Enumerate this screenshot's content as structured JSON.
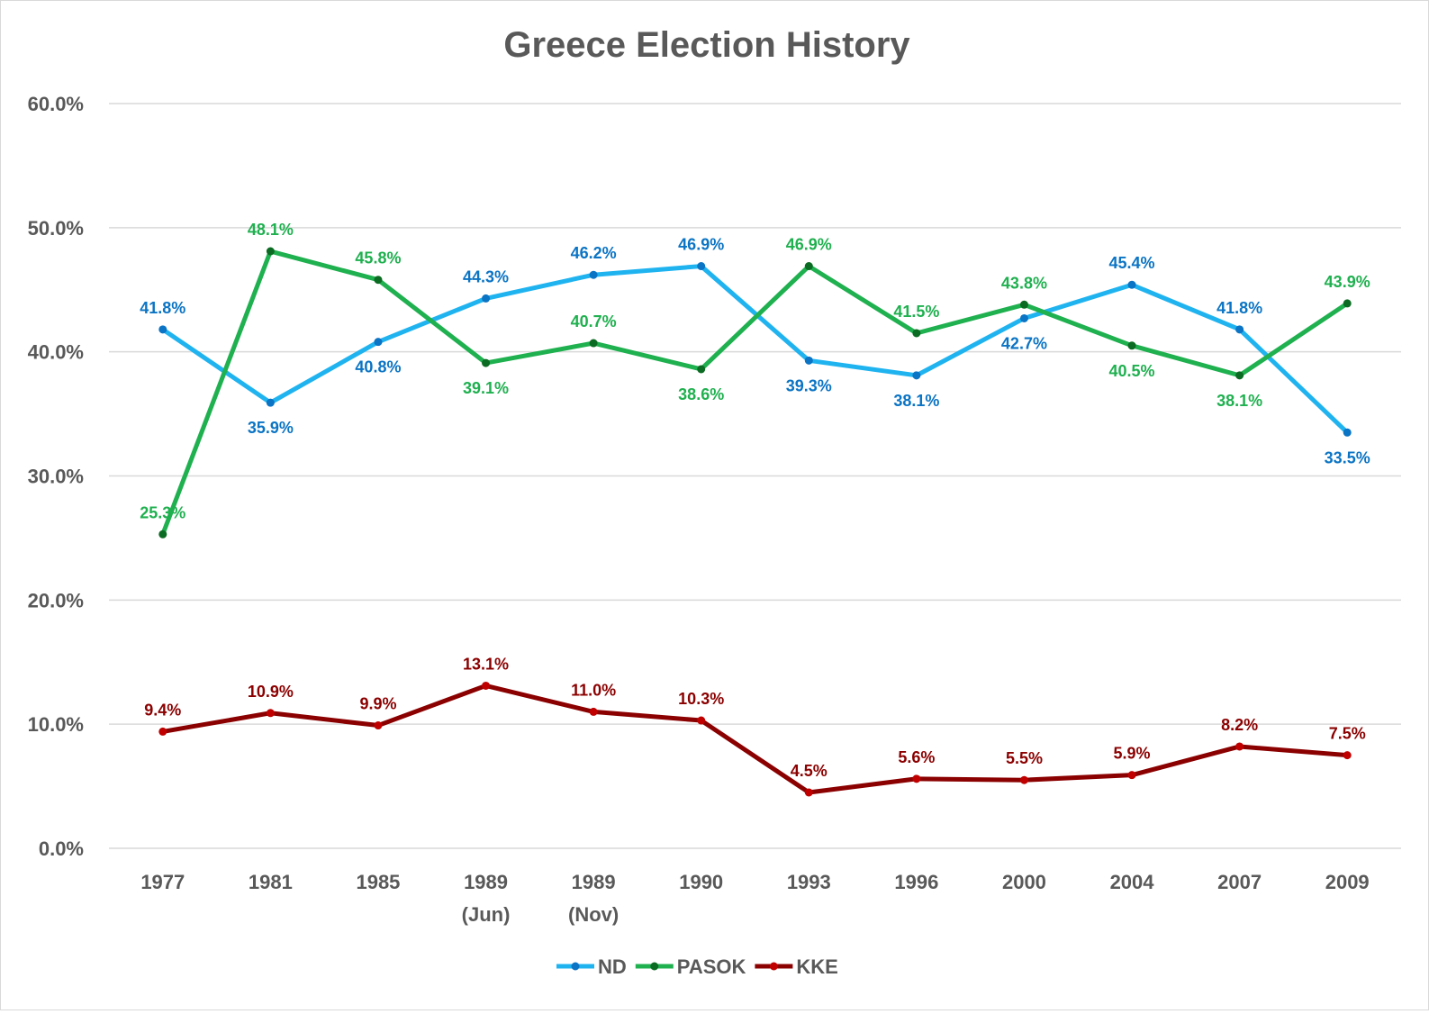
{
  "chart_data": {
    "type": "line",
    "title": "Greece Election History",
    "categories": [
      [
        "1977"
      ],
      [
        "1981"
      ],
      [
        "1985"
      ],
      [
        "1989",
        "(Jun)"
      ],
      [
        "1989",
        "(Nov)"
      ],
      [
        "1990"
      ],
      [
        "1993"
      ],
      [
        "1996"
      ],
      [
        "2000"
      ],
      [
        "2004"
      ],
      [
        "2007"
      ],
      [
        "2009"
      ]
    ],
    "ylim": [
      0,
      60
    ],
    "yticks": [
      0,
      10,
      20,
      30,
      40,
      50,
      60
    ],
    "ytick_labels": [
      "0.0%",
      "10.0%",
      "20.0%",
      "30.0%",
      "40.0%",
      "50.0%",
      "60.0%"
    ],
    "grid": true,
    "legend_position": "bottom",
    "series": [
      {
        "name": "ND",
        "color": "#1fb3f0",
        "marker_color": "#0b74c4",
        "label_color": "#0b74c4",
        "values": [
          41.8,
          35.9,
          40.8,
          44.3,
          46.2,
          46.9,
          39.3,
          38.1,
          42.7,
          45.4,
          41.8,
          33.5
        ],
        "labels": [
          "41.8%",
          "35.9%",
          "40.8%",
          "44.3%",
          "46.2%",
          "46.9%",
          "39.3%",
          "38.1%",
          "42.7%",
          "45.4%",
          "41.8%",
          "33.5%"
        ],
        "label_side": [
          "above",
          "below",
          "below",
          "above",
          "above",
          "above",
          "below",
          "below",
          "below",
          "above",
          "above",
          "below"
        ]
      },
      {
        "name": "PASOK",
        "color": "#1fb04f",
        "marker_color": "#0c6b22",
        "label_color": "#1fb04f",
        "values": [
          25.3,
          48.1,
          45.8,
          39.1,
          40.7,
          38.6,
          46.9,
          41.5,
          43.8,
          40.5,
          38.1,
          43.9
        ],
        "labels": [
          "25.3%",
          "48.1%",
          "45.8%",
          "39.1%",
          "40.7%",
          "38.6%",
          "46.9%",
          "41.5%",
          "43.8%",
          "40.5%",
          "38.1%",
          "43.9%"
        ],
        "label_side": [
          "above",
          "above",
          "above",
          "below",
          "above",
          "below",
          "above",
          "above",
          "above",
          "below",
          "below",
          "above"
        ]
      },
      {
        "name": "KKE",
        "color": "#8b0000",
        "marker_color": "#c00000",
        "label_color": "#8b0000",
        "values": [
          9.4,
          10.9,
          9.9,
          13.1,
          11.0,
          10.3,
          4.5,
          5.6,
          5.5,
          5.9,
          8.2,
          7.5
        ],
        "labels": [
          "9.4%",
          "10.9%",
          "9.9%",
          "13.1%",
          "11.0%",
          "10.3%",
          "4.5%",
          "5.6%",
          "5.5%",
          "5.9%",
          "8.2%",
          "7.5%"
        ],
        "label_side": [
          "above",
          "above",
          "above",
          "above",
          "above",
          "above",
          "above",
          "above",
          "above",
          "above",
          "above",
          "above"
        ]
      }
    ]
  }
}
